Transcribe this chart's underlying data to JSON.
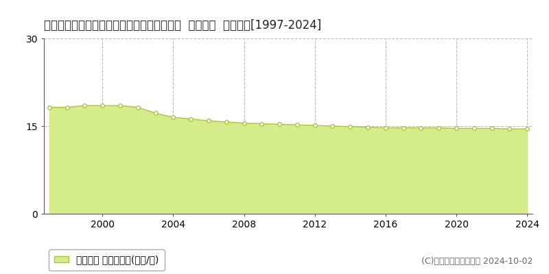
{
  "title": "福井県敦賀市公文名１５号木戸ノ上１４番５  基準地価  地価推移[1997-2024]",
  "years": [
    1997,
    1998,
    1999,
    2000,
    2001,
    2002,
    2003,
    2004,
    2005,
    2006,
    2007,
    2008,
    2009,
    2010,
    2011,
    2012,
    2013,
    2014,
    2015,
    2016,
    2017,
    2018,
    2019,
    2020,
    2021,
    2022,
    2023,
    2024
  ],
  "values": [
    18.2,
    18.2,
    18.5,
    18.5,
    18.5,
    18.2,
    17.2,
    16.5,
    16.2,
    15.9,
    15.7,
    15.5,
    15.4,
    15.3,
    15.2,
    15.1,
    15.0,
    14.9,
    14.8,
    14.7,
    14.7,
    14.7,
    14.7,
    14.6,
    14.6,
    14.6,
    14.5,
    14.5
  ],
  "fill_color": "#d4ed8a",
  "line_color": "#a8c832",
  "marker_facecolor": "#ffffff",
  "marker_edgecolor": "#a8c832",
  "background_color": "#ffffff",
  "grid_color_v": "#bbbbbb",
  "grid_color_h": "#bbbbbb",
  "ylim": [
    0,
    30
  ],
  "yticks": [
    0,
    15,
    30
  ],
  "xtick_years": [
    2000,
    2004,
    2008,
    2012,
    2016,
    2020,
    2024
  ],
  "legend_label": "基準地価 平均坪単価(万円/坪)",
  "copyright_text": "(C)土地価格ドットコム 2024-10-02",
  "title_fontsize": 12,
  "tick_fontsize": 10,
  "legend_fontsize": 10,
  "copyright_fontsize": 9
}
